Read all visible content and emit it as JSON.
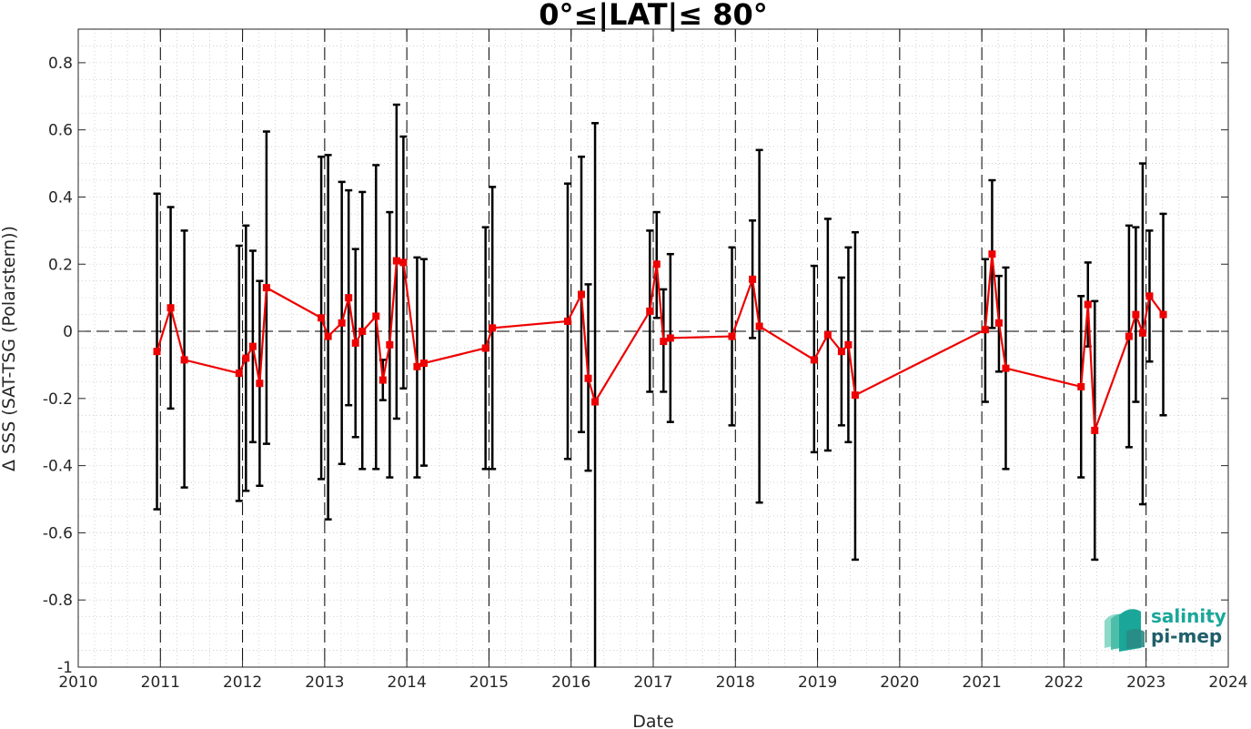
{
  "chart_data": {
    "type": "line",
    "title": "0°≤|LAT|≤ 80°",
    "xlabel": "Date",
    "ylabel": "Δ SSS (SAT-TSG (Polarstern))",
    "xlim": [
      "2010-01-01",
      "2024-01-01"
    ],
    "ylim": [
      -1,
      0.9
    ],
    "x_ticks": [
      "2010",
      "2011",
      "2012",
      "2013",
      "2014",
      "2015",
      "2016",
      "2017",
      "2018",
      "2019",
      "2020",
      "2021",
      "2022",
      "2023",
      "2024"
    ],
    "y_ticks": [
      -1,
      -0.8,
      -0.6,
      -0.4,
      -0.2,
      0,
      0.2,
      0.4,
      0.6,
      0.8
    ],
    "y_tick_labels": [
      "-1",
      "-0.8",
      "-0.6",
      "-0.4",
      "-0.2",
      "0",
      "0.2",
      "0.4",
      "0.6",
      "0.8"
    ],
    "grid": "minor dotted",
    "reference_line": 0,
    "vertical_markers": [
      "2011-01-01",
      "2012-01-01",
      "2013-01-01",
      "2014-01-01",
      "2015-01-01",
      "2016-01-01",
      "2017-01-01",
      "2018-01-01",
      "2019-01-01",
      "2020-01-01",
      "2021-01-01",
      "2022-01-01",
      "2023-01-01"
    ],
    "series": [
      {
        "color": "#ee0000",
        "marker": "square",
        "errorbar_color": "#000000",
        "points": [
          {
            "date": "2010-12",
            "y": -0.06,
            "low": -0.53,
            "high": 0.41
          },
          {
            "date": "2011-02",
            "y": 0.07,
            "low": -0.23,
            "high": 0.37
          },
          {
            "date": "2011-04",
            "y": -0.085,
            "low": -0.465,
            "high": 0.3
          },
          {
            "date": "2011-12",
            "y": -0.125,
            "low": -0.505,
            "high": 0.255
          },
          {
            "date": "2012-01",
            "y": -0.08,
            "low": -0.475,
            "high": 0.315
          },
          {
            "date": "2012-02",
            "y": -0.045,
            "low": -0.33,
            "high": 0.24
          },
          {
            "date": "2012-03",
            "y": -0.155,
            "low": -0.46,
            "high": 0.15
          },
          {
            "date": "2012-04",
            "y": 0.13,
            "low": -0.335,
            "high": 0.595
          },
          {
            "date": "2012-12",
            "y": 0.04,
            "low": -0.44,
            "high": 0.52
          },
          {
            "date": "2013-01",
            "y": -0.015,
            "low": -0.56,
            "high": 0.525
          },
          {
            "date": "2013-03",
            "y": 0.025,
            "low": -0.395,
            "high": 0.445
          },
          {
            "date": "2013-04",
            "y": 0.1,
            "low": -0.22,
            "high": 0.42
          },
          {
            "date": "2013-05",
            "y": -0.035,
            "low": -0.315,
            "high": 0.245
          },
          {
            "date": "2013-06",
            "y": 0.0,
            "low": -0.41,
            "high": 0.415
          },
          {
            "date": "2013-08",
            "y": 0.045,
            "low": -0.41,
            "high": 0.495
          },
          {
            "date": "2013-09",
            "y": -0.145,
            "low": -0.205,
            "high": -0.085
          },
          {
            "date": "2013-10",
            "y": -0.04,
            "low": -0.435,
            "high": 0.355
          },
          {
            "date": "2013-11",
            "y": 0.21,
            "low": -0.26,
            "high": 0.675
          },
          {
            "date": "2013-12",
            "y": 0.205,
            "low": -0.17,
            "high": 0.58
          },
          {
            "date": "2014-02",
            "y": -0.105,
            "low": -0.435,
            "high": 0.22
          },
          {
            "date": "2014-03",
            "y": -0.095,
            "low": -0.4,
            "high": 0.215
          },
          {
            "date": "2014-12",
            "y": -0.05,
            "low": -0.41,
            "high": 0.31
          },
          {
            "date": "2015-01",
            "y": 0.01,
            "low": -0.41,
            "high": 0.43
          },
          {
            "date": "2015-12",
            "y": 0.03,
            "low": -0.38,
            "high": 0.44
          },
          {
            "date": "2016-02",
            "y": 0.11,
            "low": -0.3,
            "high": 0.52
          },
          {
            "date": "2016-03",
            "y": -0.14,
            "low": -0.415,
            "high": 0.14
          },
          {
            "date": "2016-04",
            "y": -0.21,
            "low": -1.05,
            "high": 0.62
          },
          {
            "date": "2016-12",
            "y": 0.06,
            "low": -0.18,
            "high": 0.3
          },
          {
            "date": "2017-01",
            "y": 0.2,
            "low": 0.04,
            "high": 0.355
          },
          {
            "date": "2017-02",
            "y": -0.03,
            "low": -0.18,
            "high": 0.125
          },
          {
            "date": "2017-03",
            "y": -0.02,
            "low": -0.27,
            "high": 0.23
          },
          {
            "date": "2017-12",
            "y": -0.015,
            "low": -0.28,
            "high": 0.25
          },
          {
            "date": "2018-03",
            "y": 0.155,
            "low": -0.02,
            "high": 0.33
          },
          {
            "date": "2018-04",
            "y": 0.015,
            "low": -0.51,
            "high": 0.54
          },
          {
            "date": "2018-12",
            "y": -0.085,
            "low": -0.36,
            "high": 0.195
          },
          {
            "date": "2019-02",
            "y": -0.01,
            "low": -0.355,
            "high": 0.335
          },
          {
            "date": "2019-04",
            "y": -0.06,
            "low": -0.28,
            "high": 0.16
          },
          {
            "date": "2019-05",
            "y": -0.04,
            "low": -0.33,
            "high": 0.25
          },
          {
            "date": "2019-06",
            "y": -0.19,
            "low": -0.68,
            "high": 0.295
          },
          {
            "date": "2021-01",
            "y": 0.005,
            "low": -0.21,
            "high": 0.215
          },
          {
            "date": "2021-02",
            "y": 0.23,
            "low": 0.01,
            "high": 0.45
          },
          {
            "date": "2021-03",
            "y": 0.025,
            "low": -0.12,
            "high": 0.165
          },
          {
            "date": "2021-04",
            "y": -0.11,
            "low": -0.41,
            "high": 0.19
          },
          {
            "date": "2022-03",
            "y": -0.165,
            "low": -0.435,
            "high": 0.105
          },
          {
            "date": "2022-04",
            "y": 0.08,
            "low": -0.045,
            "high": 0.205
          },
          {
            "date": "2022-05",
            "y": -0.295,
            "low": -0.68,
            "high": 0.09
          },
          {
            "date": "2022-10",
            "y": -0.015,
            "low": -0.345,
            "high": 0.315
          },
          {
            "date": "2022-11",
            "y": 0.05,
            "low": -0.21,
            "high": 0.31
          },
          {
            "date": "2022-12",
            "y": -0.005,
            "low": -0.515,
            "high": 0.5
          },
          {
            "date": "2023-01",
            "y": 0.105,
            "low": -0.09,
            "high": 0.3
          },
          {
            "date": "2023-03",
            "y": 0.05,
            "low": -0.25,
            "high": 0.35
          }
        ]
      }
    ]
  },
  "logo": {
    "line1": "salinity",
    "line2": "pi-mep",
    "color1": "#1aa79a",
    "color2": "#1f5f6a"
  }
}
